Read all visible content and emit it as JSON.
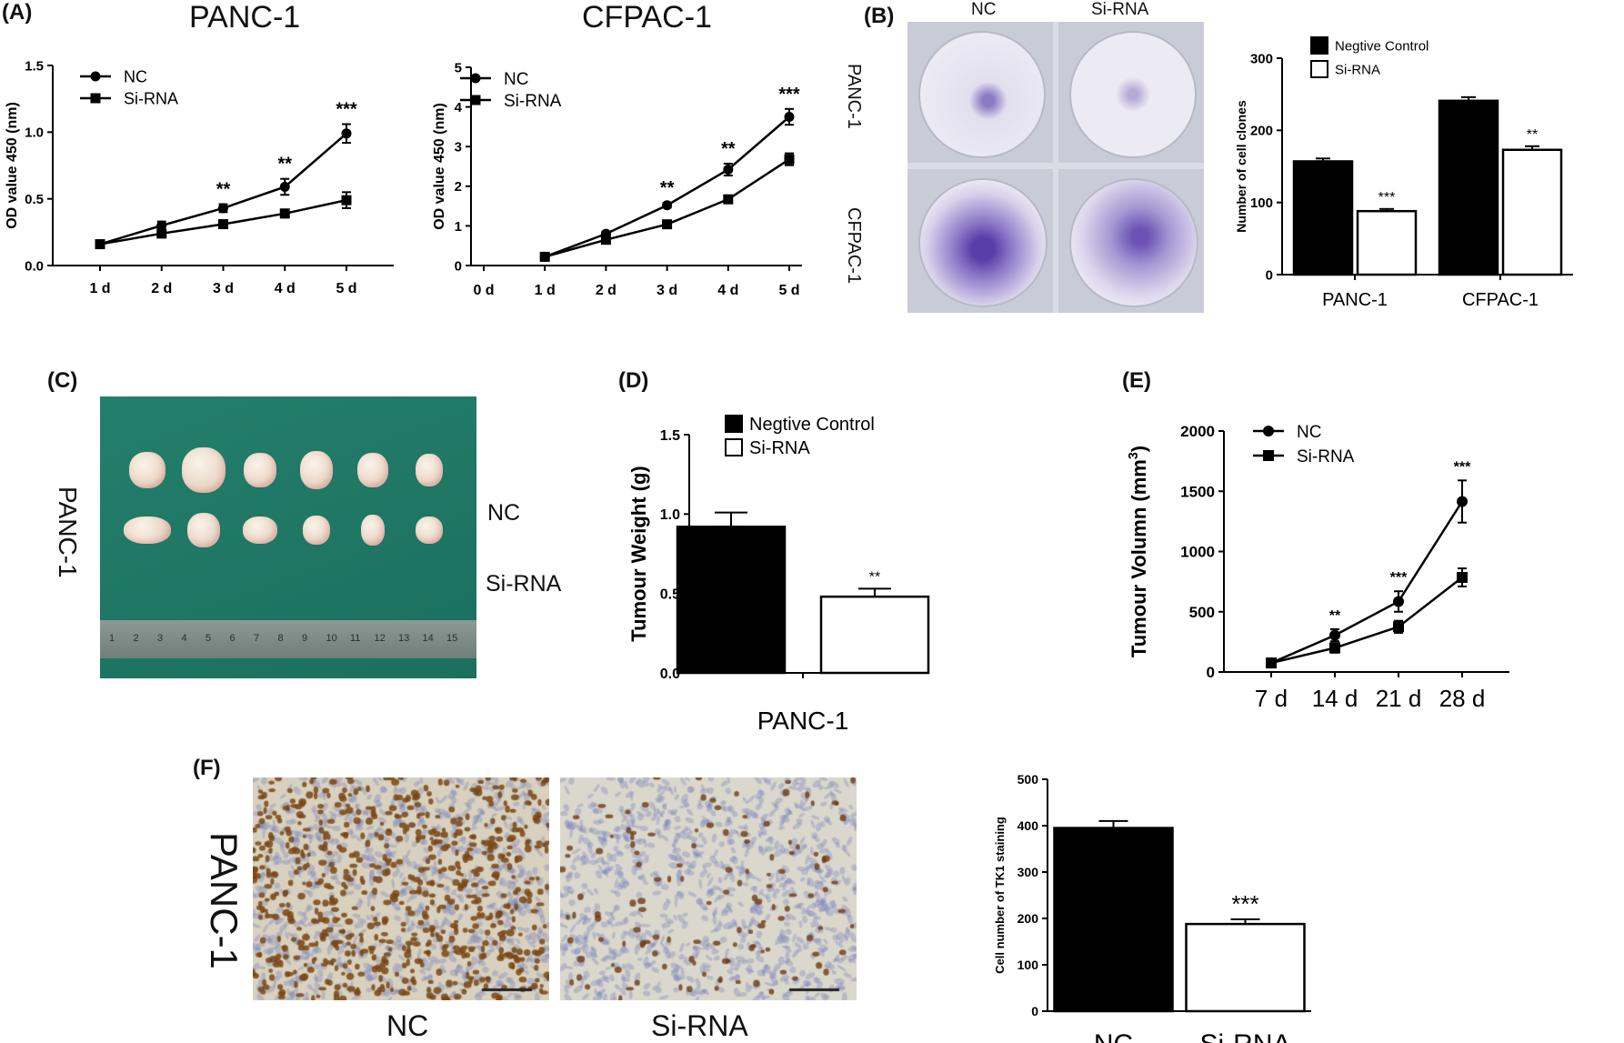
{
  "panels": {
    "A": "(A)",
    "B": "(B)",
    "C": "(C)",
    "D": "(D)",
    "E": "(E)",
    "F": "(F)"
  },
  "titles": {
    "panc": "PANC-1",
    "cfpac": "CFPAC-1"
  },
  "colony_images": {
    "col_nc": "NC",
    "col_si": "Si-RNA",
    "row_panc": "PANC-1",
    "row_cfpac": "CFPAC-1"
  },
  "tumor_photo": {
    "side": "PANC-1",
    "row_nc": "NC",
    "row_si": "Si-RNA",
    "ruler_numbers": [
      "1",
      "2",
      "3",
      "4",
      "5",
      "6",
      "7",
      "8",
      "9",
      "10",
      "11",
      "12",
      "13",
      "14",
      "15"
    ]
  },
  "ihc": {
    "side": "PANC-1",
    "left": "NC",
    "right": "Si-RNA"
  },
  "colors": {
    "nc": "#000000",
    "si": "#ffffff",
    "stroke": "#000000",
    "drape": "#1f7a66",
    "stain": "#5a3ea8"
  },
  "chart_data": [
    {
      "id": "A1",
      "type": "line",
      "ylabel": "OD value 450 (nm)",
      "categories": [
        "1 d",
        "2 d",
        "3 d",
        "4 d",
        "5 d"
      ],
      "ylim": [
        0,
        1.5
      ],
      "yticks": [
        "0.0",
        "0.5",
        "1.0",
        "1.5"
      ],
      "ytickvals": [
        0,
        0.5,
        1.0,
        1.5
      ],
      "legend_position": "top-left",
      "series": [
        {
          "name": "NC",
          "marker": "circle",
          "values": [
            0.16,
            0.3,
            0.43,
            0.59,
            0.99
          ],
          "errors": [
            0.02,
            0.03,
            0.03,
            0.06,
            0.07
          ]
        },
        {
          "name": "Si-RNA",
          "marker": "square",
          "values": [
            0.16,
            0.24,
            0.31,
            0.39,
            0.49
          ],
          "errors": [
            0.02,
            0.03,
            0.02,
            0.03,
            0.06
          ]
        }
      ],
      "significance": [
        {
          "index": 2,
          "label": "**"
        },
        {
          "index": 3,
          "label": "**"
        },
        {
          "index": 4,
          "label": "***"
        }
      ]
    },
    {
      "id": "A2",
      "type": "line",
      "ylabel": "OD value 450 (nm)",
      "categories": [
        "0 d",
        "1 d",
        "2 d",
        "3 d",
        "4 d",
        "5 d"
      ],
      "ylim": [
        0,
        5
      ],
      "yticks": [
        "0",
        "1",
        "2",
        "3",
        "4",
        "5"
      ],
      "ytickvals": [
        0,
        1,
        2,
        3,
        4,
        5
      ],
      "legend_position": "top-left",
      "series": [
        {
          "name": "NC",
          "marker": "circle",
          "values": [
            null,
            0.22,
            0.8,
            1.52,
            2.42,
            3.75
          ],
          "errors": [
            null,
            0.05,
            0.05,
            0.06,
            0.15,
            0.2
          ]
        },
        {
          "name": "Si-RNA",
          "marker": "square",
          "values": [
            null,
            0.22,
            0.65,
            1.04,
            1.67,
            2.68
          ],
          "errors": [
            null,
            0.05,
            0.05,
            0.05,
            0.07,
            0.15
          ]
        }
      ],
      "significance": [
        {
          "index": 3,
          "label": "**"
        },
        {
          "index": 4,
          "label": "**"
        },
        {
          "index": 5,
          "label": "***"
        }
      ]
    },
    {
      "id": "B",
      "type": "bar",
      "ylabel": "Number of cell clones",
      "categories": [
        "PANC-1",
        "CFPAC-1"
      ],
      "ylim": [
        0,
        300
      ],
      "yticks": [
        "0",
        "100",
        "200",
        "300"
      ],
      "ytickvals": [
        0,
        100,
        200,
        300
      ],
      "legend_position": "top-left",
      "series": [
        {
          "name": "Negtive Control",
          "values": [
            157,
            241
          ],
          "errors": [
            4,
            5
          ]
        },
        {
          "name": "Si-RNA",
          "values": [
            88,
            173
          ],
          "errors": [
            3,
            5
          ]
        }
      ],
      "significance": [
        {
          "index": 0,
          "label": "***"
        },
        {
          "index": 1,
          "label": "**"
        }
      ]
    },
    {
      "id": "D",
      "type": "bar",
      "ylabel": "Tumour Weight (g)",
      "xlabel": "PANC-1",
      "categories": [
        ""
      ],
      "ylim": [
        0,
        1.5
      ],
      "yticks": [
        "0.0",
        "0.5",
        "1.0",
        "1.5"
      ],
      "ytickvals": [
        0,
        0.5,
        1.0,
        1.5
      ],
      "legend_position": "top-left",
      "series": [
        {
          "name": "Negtive Control",
          "values": [
            0.92
          ],
          "errors": [
            0.09
          ]
        },
        {
          "name": "Si-RNA",
          "values": [
            0.48
          ],
          "errors": [
            0.05
          ]
        }
      ],
      "significance": [
        {
          "index": 0,
          "label": "**"
        }
      ]
    },
    {
      "id": "E",
      "type": "line",
      "ylabel_main": "Tumour Volumn (mm",
      "ylabel_sup": "3",
      "ylabel_end": ")",
      "categories": [
        "7  d",
        "14  d",
        "21  d",
        "28  d"
      ],
      "ylim": [
        0,
        2000
      ],
      "yticks": [
        "0",
        "500",
        "1000",
        "1500",
        "2000"
      ],
      "ytickvals": [
        0,
        500,
        1000,
        1500,
        2000
      ],
      "legend_position": "top-left",
      "series": [
        {
          "name": "NC",
          "marker": "circle",
          "values": [
            75,
            305,
            585,
            1415
          ],
          "errors": [
            15,
            50,
            85,
            175
          ]
        },
        {
          "name": "Si-RNA",
          "marker": "square",
          "values": [
            75,
            200,
            375,
            785
          ],
          "errors": [
            15,
            40,
            50,
            75
          ]
        }
      ],
      "significance": [
        {
          "index": 1,
          "label": "**"
        },
        {
          "index": 2,
          "label": "***"
        },
        {
          "index": 3,
          "label": "***"
        }
      ]
    },
    {
      "id": "F",
      "type": "bar",
      "ylabel": "Cell number of TK1 staining",
      "categories": [
        "NC",
        "Si-RNA"
      ],
      "ylim": [
        0,
        500
      ],
      "yticks": [
        "0",
        "100",
        "200",
        "300",
        "400",
        "500"
      ],
      "ytickvals": [
        0,
        100,
        200,
        300,
        400,
        500
      ],
      "values": [
        395,
        188
      ],
      "errors": [
        15,
        10
      ],
      "significance": [
        {
          "index": 1,
          "label": "***"
        }
      ]
    }
  ]
}
